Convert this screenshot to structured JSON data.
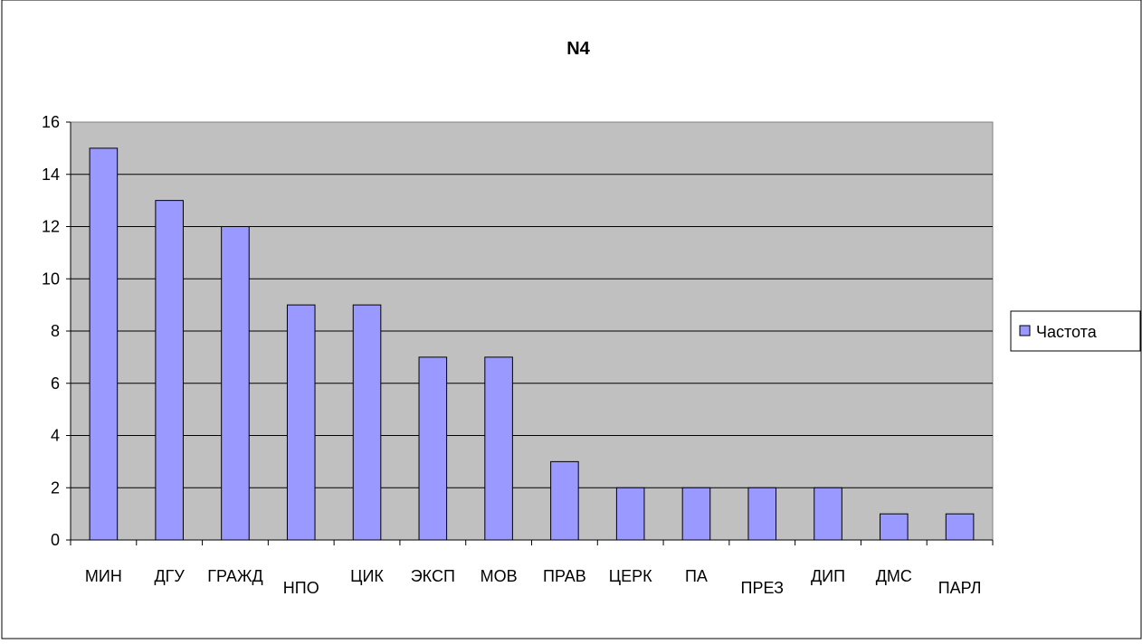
{
  "chart_data": {
    "type": "bar",
    "title": "N4",
    "xlabel": "",
    "ylabel": "",
    "categories": [
      "МИН",
      "ДГУ",
      "ГРАЖД",
      "НПО",
      "ЦИК",
      "ЭКСП",
      "МОВ",
      "ПРАВ",
      "ЦЕРК",
      "ПА",
      "ПРЕЗ",
      "ДИП",
      "ДМС",
      "ПАРЛ"
    ],
    "series": [
      {
        "name": "Частота",
        "values": [
          15,
          13,
          12,
          9,
          9,
          7,
          7,
          3,
          2,
          2,
          2,
          2,
          1,
          1
        ]
      }
    ],
    "ylim": [
      0,
      16
    ],
    "yticks": [
      0,
      2,
      4,
      6,
      8,
      10,
      12,
      14,
      16
    ],
    "grid": true,
    "legend_position": "right",
    "colors": {
      "bar_fill": "#9999ff",
      "bar_stroke": "#000000",
      "plot_background": "#c0c0c0",
      "gridline": "#000000"
    }
  }
}
